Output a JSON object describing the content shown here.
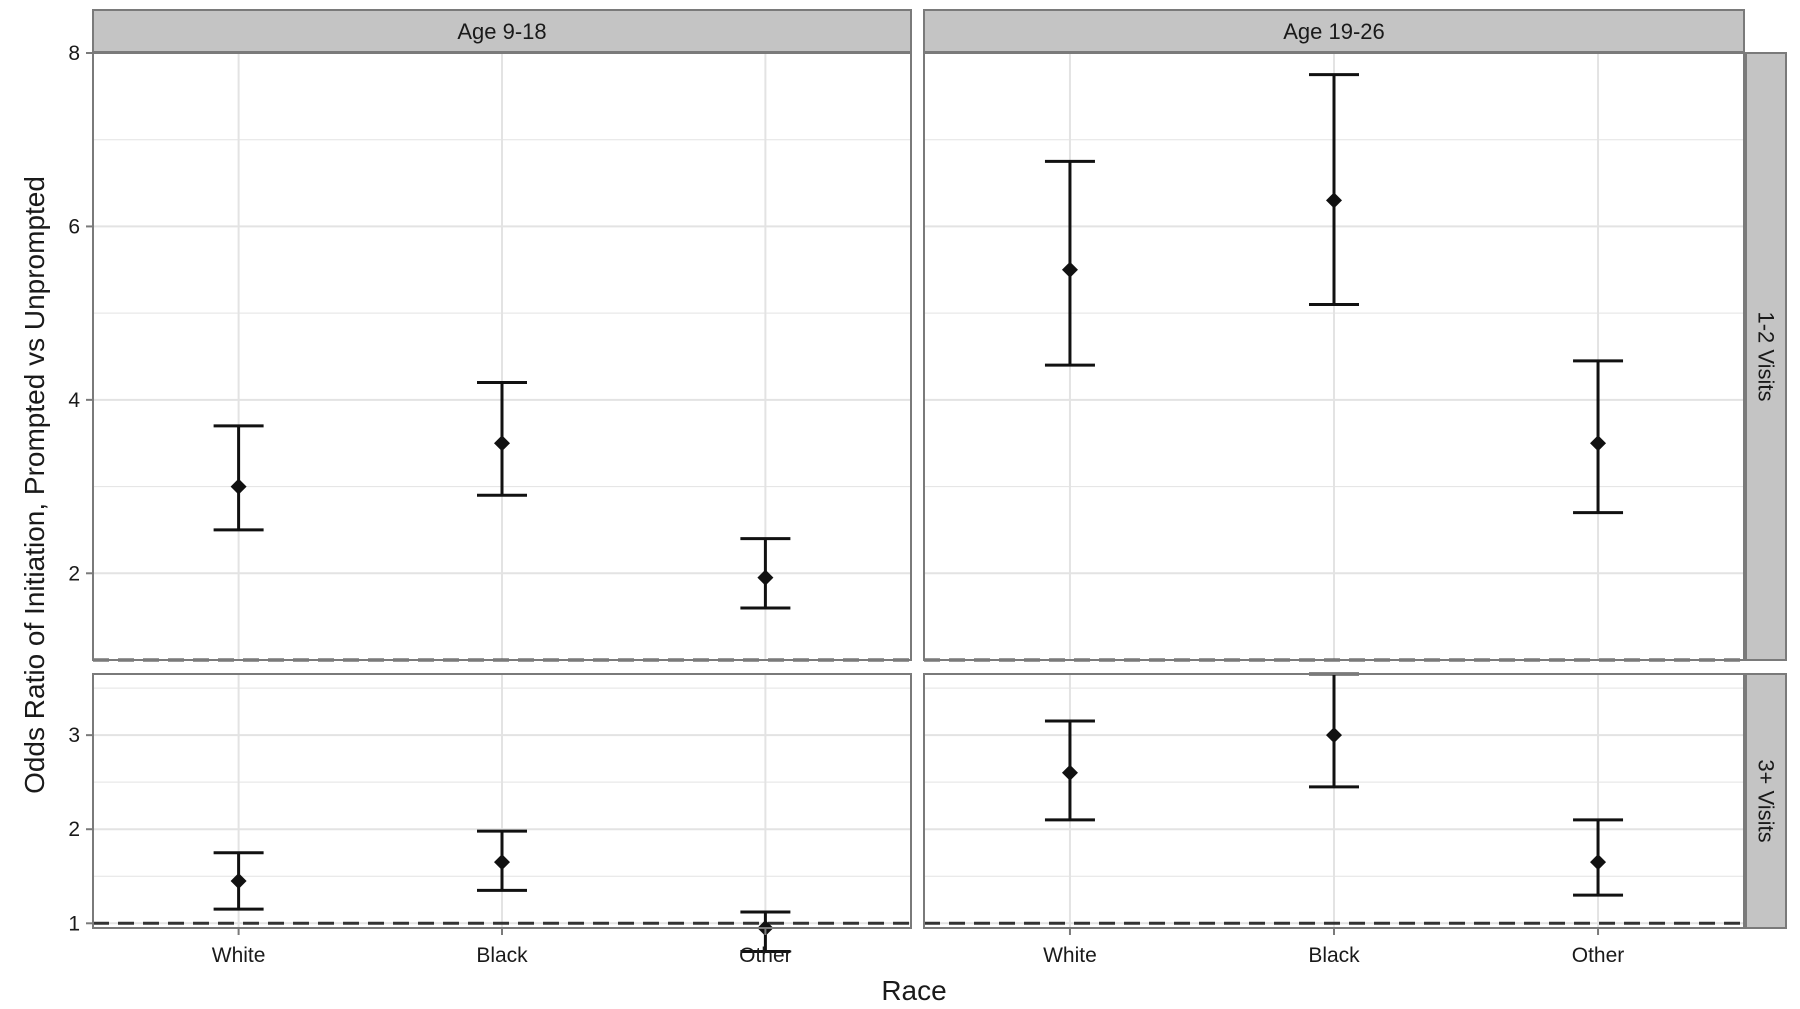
{
  "chart_data": {
    "type": "scatter",
    "subtype": "point-with-error-bars",
    "xlabel": "Race",
    "ylabel": "Odds Ratio of Initiation, Prompted vs Unprompted",
    "categories": [
      "White",
      "Black",
      "Other"
    ],
    "reference_line": {
      "y": 1,
      "style": "dashed"
    },
    "grid": true,
    "facet_columns": [
      "Age 9-18",
      "Age 19-26"
    ],
    "facet_rows": [
      "1-2 Visits",
      "3+ Visits"
    ],
    "rows": [
      {
        "label": "1-2 Visits",
        "ylim": [
          1,
          8
        ],
        "yticks": [
          2,
          4,
          6,
          8
        ],
        "minor_yticks": [
          3,
          5,
          7
        ]
      },
      {
        "label": "3+ Visits",
        "ylim": [
          0.95,
          3.65
        ],
        "yticks": [
          1,
          2,
          3
        ],
        "minor_yticks": [
          1.5,
          2.5,
          3.5
        ]
      }
    ],
    "panels": [
      {
        "column": "Age 9-18",
        "row": "1-2 Visits",
        "points": [
          {
            "category": "White",
            "estimate": 3.0,
            "lower": 2.5,
            "upper": 3.7
          },
          {
            "category": "Black",
            "estimate": 3.5,
            "lower": 2.9,
            "upper": 4.2
          },
          {
            "category": "Other",
            "estimate": 1.95,
            "lower": 1.6,
            "upper": 2.4
          }
        ]
      },
      {
        "column": "Age 19-26",
        "row": "1-2 Visits",
        "points": [
          {
            "category": "White",
            "estimate": 5.5,
            "lower": 4.4,
            "upper": 6.75
          },
          {
            "category": "Black",
            "estimate": 6.3,
            "lower": 5.1,
            "upper": 7.75
          },
          {
            "category": "Other",
            "estimate": 3.5,
            "lower": 2.7,
            "upper": 4.45
          }
        ]
      },
      {
        "column": "Age 9-18",
        "row": "3+ Visits",
        "points": [
          {
            "category": "White",
            "estimate": 1.45,
            "lower": 1.15,
            "upper": 1.75
          },
          {
            "category": "Black",
            "estimate": 1.65,
            "lower": 1.35,
            "upper": 1.98
          }
        ]
      },
      {
        "column": "Age 19-26",
        "row": "3+ Visits",
        "points": [
          {
            "category": "White",
            "estimate": 2.6,
            "lower": 2.1,
            "upper": 3.15
          },
          {
            "category": "Black",
            "estimate": 3.0,
            "lower": 2.45,
            "upper": 3.65
          },
          {
            "category": "Other",
            "estimate": 1.65,
            "lower": 1.3,
            "upper": 2.1
          }
        ]
      }
    ],
    "extra_points": [
      {
        "column": "Age 9-18",
        "row": "3+ Visits",
        "category": "Other",
        "estimate": 0.95,
        "lower": 0.7,
        "upper": 1.12
      }
    ],
    "colors": {
      "strip_fill": "#c4c4c4",
      "panel_border": "#7a7a7a",
      "grid": "#e3e3e3",
      "mark": "#111111",
      "reference": "#333333"
    }
  }
}
